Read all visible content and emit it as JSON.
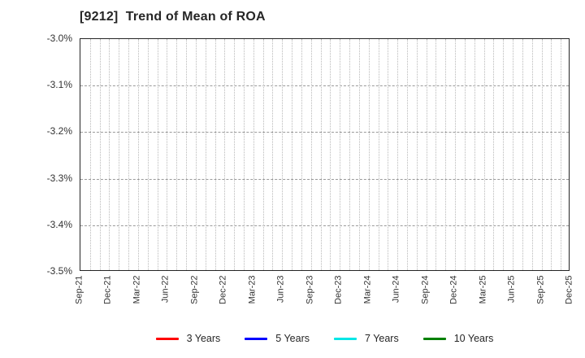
{
  "chart_data": {
    "type": "line",
    "title": "[9212]  Trend of Mean of ROA",
    "xlabel": "",
    "ylabel": "",
    "x_tick_labels": [
      "Sep-21",
      "Dec-21",
      "Mar-22",
      "Jun-22",
      "Sep-22",
      "Dec-22",
      "Mar-23",
      "Jun-23",
      "Sep-23",
      "Dec-23",
      "Mar-24",
      "Jun-24",
      "Sep-24",
      "Dec-24",
      "Mar-25",
      "Jun-25",
      "Sep-25",
      "Dec-25"
    ],
    "x_total_months": 51,
    "x_minor_gridline_interval": "monthly",
    "y_tick_labels": [
      "-3.0%",
      "-3.1%",
      "-3.2%",
      "-3.3%",
      "-3.4%",
      "-3.5%"
    ],
    "ylim": [
      -3.5,
      -3.0
    ],
    "grid": true,
    "legend_position": "bottom-center",
    "no_data_plotted": true,
    "series": [
      {
        "name": "3 Years",
        "color": "#ff0000",
        "values": []
      },
      {
        "name": "5 Years",
        "color": "#0000ff",
        "values": []
      },
      {
        "name": "7 Years",
        "color": "#00e6e6",
        "values": []
      },
      {
        "name": "10 Years",
        "color": "#008000",
        "values": []
      }
    ],
    "colors": {
      "frame": "#262626",
      "grid_vertical": "#b9b9b9",
      "grid_horizontal": "#9a9a9a",
      "text": "#262626"
    }
  }
}
